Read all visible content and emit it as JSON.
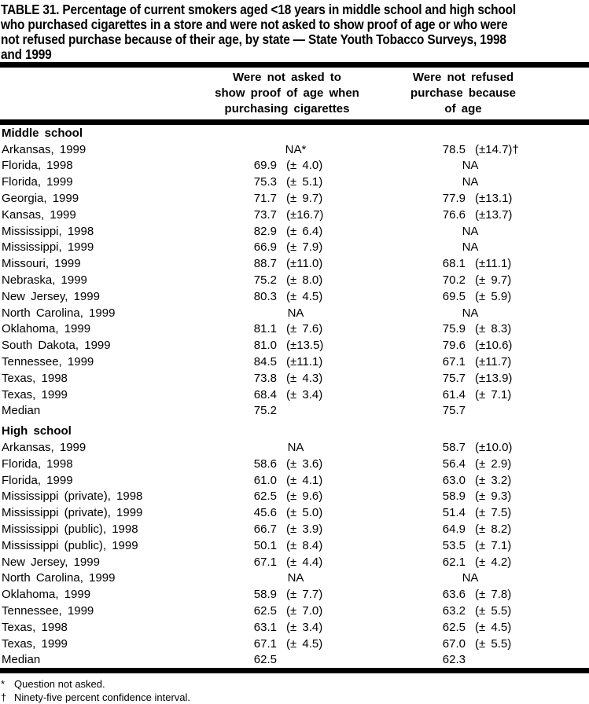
{
  "title_lines": [
    "TABLE 31. Percentage of current smokers aged <18 years in middle school and high school",
    "who purchased cigarettes in a store and were not asked to show proof of age or who were",
    "not refused purchase because of their age, by state — State Youth Tobacco Surveys, 1998",
    "and 1999"
  ],
  "header": {
    "col1_lines": [
      "Were not asked to",
      "show proof of age when",
      "purchasing cigarettes"
    ],
    "col2_lines": [
      "Were not refused",
      "purchase because",
      "of age"
    ]
  },
  "sections": [
    {
      "name": "Middle school",
      "rows": [
        {
          "label": "Arkansas, 1999",
          "c1": {
            "na": "NA*"
          },
          "c2": {
            "num": "78.5",
            "ci": "(±14.7)†"
          }
        },
        {
          "label": "Florida, 1998",
          "c1": {
            "num": "69.9",
            "ci": "(± 4.0)"
          },
          "c2": {
            "na": "NA"
          }
        },
        {
          "label": "Florida, 1999",
          "c1": {
            "num": "75.3",
            "ci": "(± 5.1)"
          },
          "c2": {
            "na": "NA"
          }
        },
        {
          "label": "Georgia, 1999",
          "c1": {
            "num": "71.7",
            "ci": "(± 9.7)"
          },
          "c2": {
            "num": "77.9",
            "ci": "(±13.1)"
          }
        },
        {
          "label": "Kansas, 1999",
          "c1": {
            "num": "73.7",
            "ci": "(±16.7)"
          },
          "c2": {
            "num": "76.6",
            "ci": "(±13.7)"
          }
        },
        {
          "label": "Mississippi, 1998",
          "c1": {
            "num": "82.9",
            "ci": "(± 6.4)"
          },
          "c2": {
            "na": "NA"
          }
        },
        {
          "label": "Mississippi, 1999",
          "c1": {
            "num": "66.9",
            "ci": "(± 7.9)"
          },
          "c2": {
            "na": "NA"
          }
        },
        {
          "label": "Missouri, 1999",
          "c1": {
            "num": "88.7",
            "ci": "(±11.0)"
          },
          "c2": {
            "num": "68.1",
            "ci": "(±11.1)"
          }
        },
        {
          "label": "Nebraska, 1999",
          "c1": {
            "num": "75.2",
            "ci": "(± 8.0)"
          },
          "c2": {
            "num": "70.2",
            "ci": "(± 9.7)"
          }
        },
        {
          "label": "New Jersey, 1999",
          "c1": {
            "num": "80.3",
            "ci": "(± 4.5)"
          },
          "c2": {
            "num": "69.5",
            "ci": "(± 5.9)"
          }
        },
        {
          "label": "North Carolina, 1999",
          "c1": {
            "na": "NA"
          },
          "c2": {
            "na": "NA"
          }
        },
        {
          "label": "Oklahoma, 1999",
          "c1": {
            "num": "81.1",
            "ci": "(± 7.6)"
          },
          "c2": {
            "num": "75.9",
            "ci": "(± 8.3)"
          }
        },
        {
          "label": "South Dakota, 1999",
          "c1": {
            "num": "81.0",
            "ci": "(±13.5)"
          },
          "c2": {
            "num": "79.6",
            "ci": "(±10.6)"
          }
        },
        {
          "label": "Tennessee, 1999",
          "c1": {
            "num": "84.5",
            "ci": "(±11.1)"
          },
          "c2": {
            "num": "67.1",
            "ci": "(±11.7)"
          }
        },
        {
          "label": "Texas, 1998",
          "c1": {
            "num": "73.8",
            "ci": "(± 4.3)"
          },
          "c2": {
            "num": "75.7",
            "ci": "(±13.9)"
          }
        },
        {
          "label": "Texas, 1999",
          "c1": {
            "num": "68.4",
            "ci": "(± 3.4)"
          },
          "c2": {
            "num": "61.4",
            "ci": "(± 7.1)"
          }
        },
        {
          "label": "Median",
          "c1": {
            "num": "75.2"
          },
          "c2": {
            "num": "75.7"
          }
        }
      ]
    },
    {
      "name": "High school",
      "rows": [
        {
          "label": "Arkansas, 1999",
          "c1": {
            "na": "NA"
          },
          "c2": {
            "num": "58.7",
            "ci": "(±10.0)"
          }
        },
        {
          "label": "Florida, 1998",
          "c1": {
            "num": "58.6",
            "ci": "(± 3.6)"
          },
          "c2": {
            "num": "56.4",
            "ci": "(± 2.9)"
          }
        },
        {
          "label": "Florida, 1999",
          "c1": {
            "num": "61.0",
            "ci": "(± 4.1)"
          },
          "c2": {
            "num": "63.0",
            "ci": "(± 3.2)"
          }
        },
        {
          "label": "Mississippi (private), 1998",
          "c1": {
            "num": "62.5",
            "ci": "(± 9.6)"
          },
          "c2": {
            "num": "58.9",
            "ci": "(± 9.3)"
          }
        },
        {
          "label": "Mississippi (private), 1999",
          "c1": {
            "num": "45.6",
            "ci": "(± 5.0)"
          },
          "c2": {
            "num": "51.4",
            "ci": "(± 7.5)"
          }
        },
        {
          "label": "Mississippi (public), 1998",
          "c1": {
            "num": "66.7",
            "ci": "(± 3.9)"
          },
          "c2": {
            "num": "64.9",
            "ci": "(± 8.2)"
          }
        },
        {
          "label": "Mississippi (public), 1999",
          "c1": {
            "num": "50.1",
            "ci": "(± 8.4)"
          },
          "c2": {
            "num": "53.5",
            "ci": "(± 7.1)"
          }
        },
        {
          "label": "New Jersey, 1999",
          "c1": {
            "num": "67.1",
            "ci": "(± 4.4)"
          },
          "c2": {
            "num": "62.1",
            "ci": "(± 4.2)"
          }
        },
        {
          "label": "North Carolina, 1999",
          "c1": {
            "na": "NA"
          },
          "c2": {
            "na": "NA"
          }
        },
        {
          "label": "Oklahoma, 1999",
          "c1": {
            "num": "58.9",
            "ci": "(± 7.7)"
          },
          "c2": {
            "num": "63.6",
            "ci": "(± 7.8)"
          }
        },
        {
          "label": "Tennessee, 1999",
          "c1": {
            "num": "62.5",
            "ci": "(± 7.0)"
          },
          "c2": {
            "num": "63.2",
            "ci": "(± 5.5)"
          }
        },
        {
          "label": "Texas, 1998",
          "c1": {
            "num": "63.1",
            "ci": "(± 3.4)"
          },
          "c2": {
            "num": "62.5",
            "ci": "(± 4.5)"
          }
        },
        {
          "label": "Texas, 1999",
          "c1": {
            "num": "67.1",
            "ci": "(± 4.5)"
          },
          "c2": {
            "num": "67.0",
            "ci": "(± 5.5)"
          }
        },
        {
          "label": "Median",
          "c1": {
            "num": "62.5"
          },
          "c2": {
            "num": "62.3"
          }
        }
      ]
    }
  ],
  "footnotes": [
    {
      "symbol": "*",
      "text": "Question not asked."
    },
    {
      "symbol": "†",
      "text": "Ninety-five percent confidence interval."
    }
  ],
  "colors": {
    "text": "#000000",
    "background": "#ffffff",
    "rule": "#000000"
  }
}
